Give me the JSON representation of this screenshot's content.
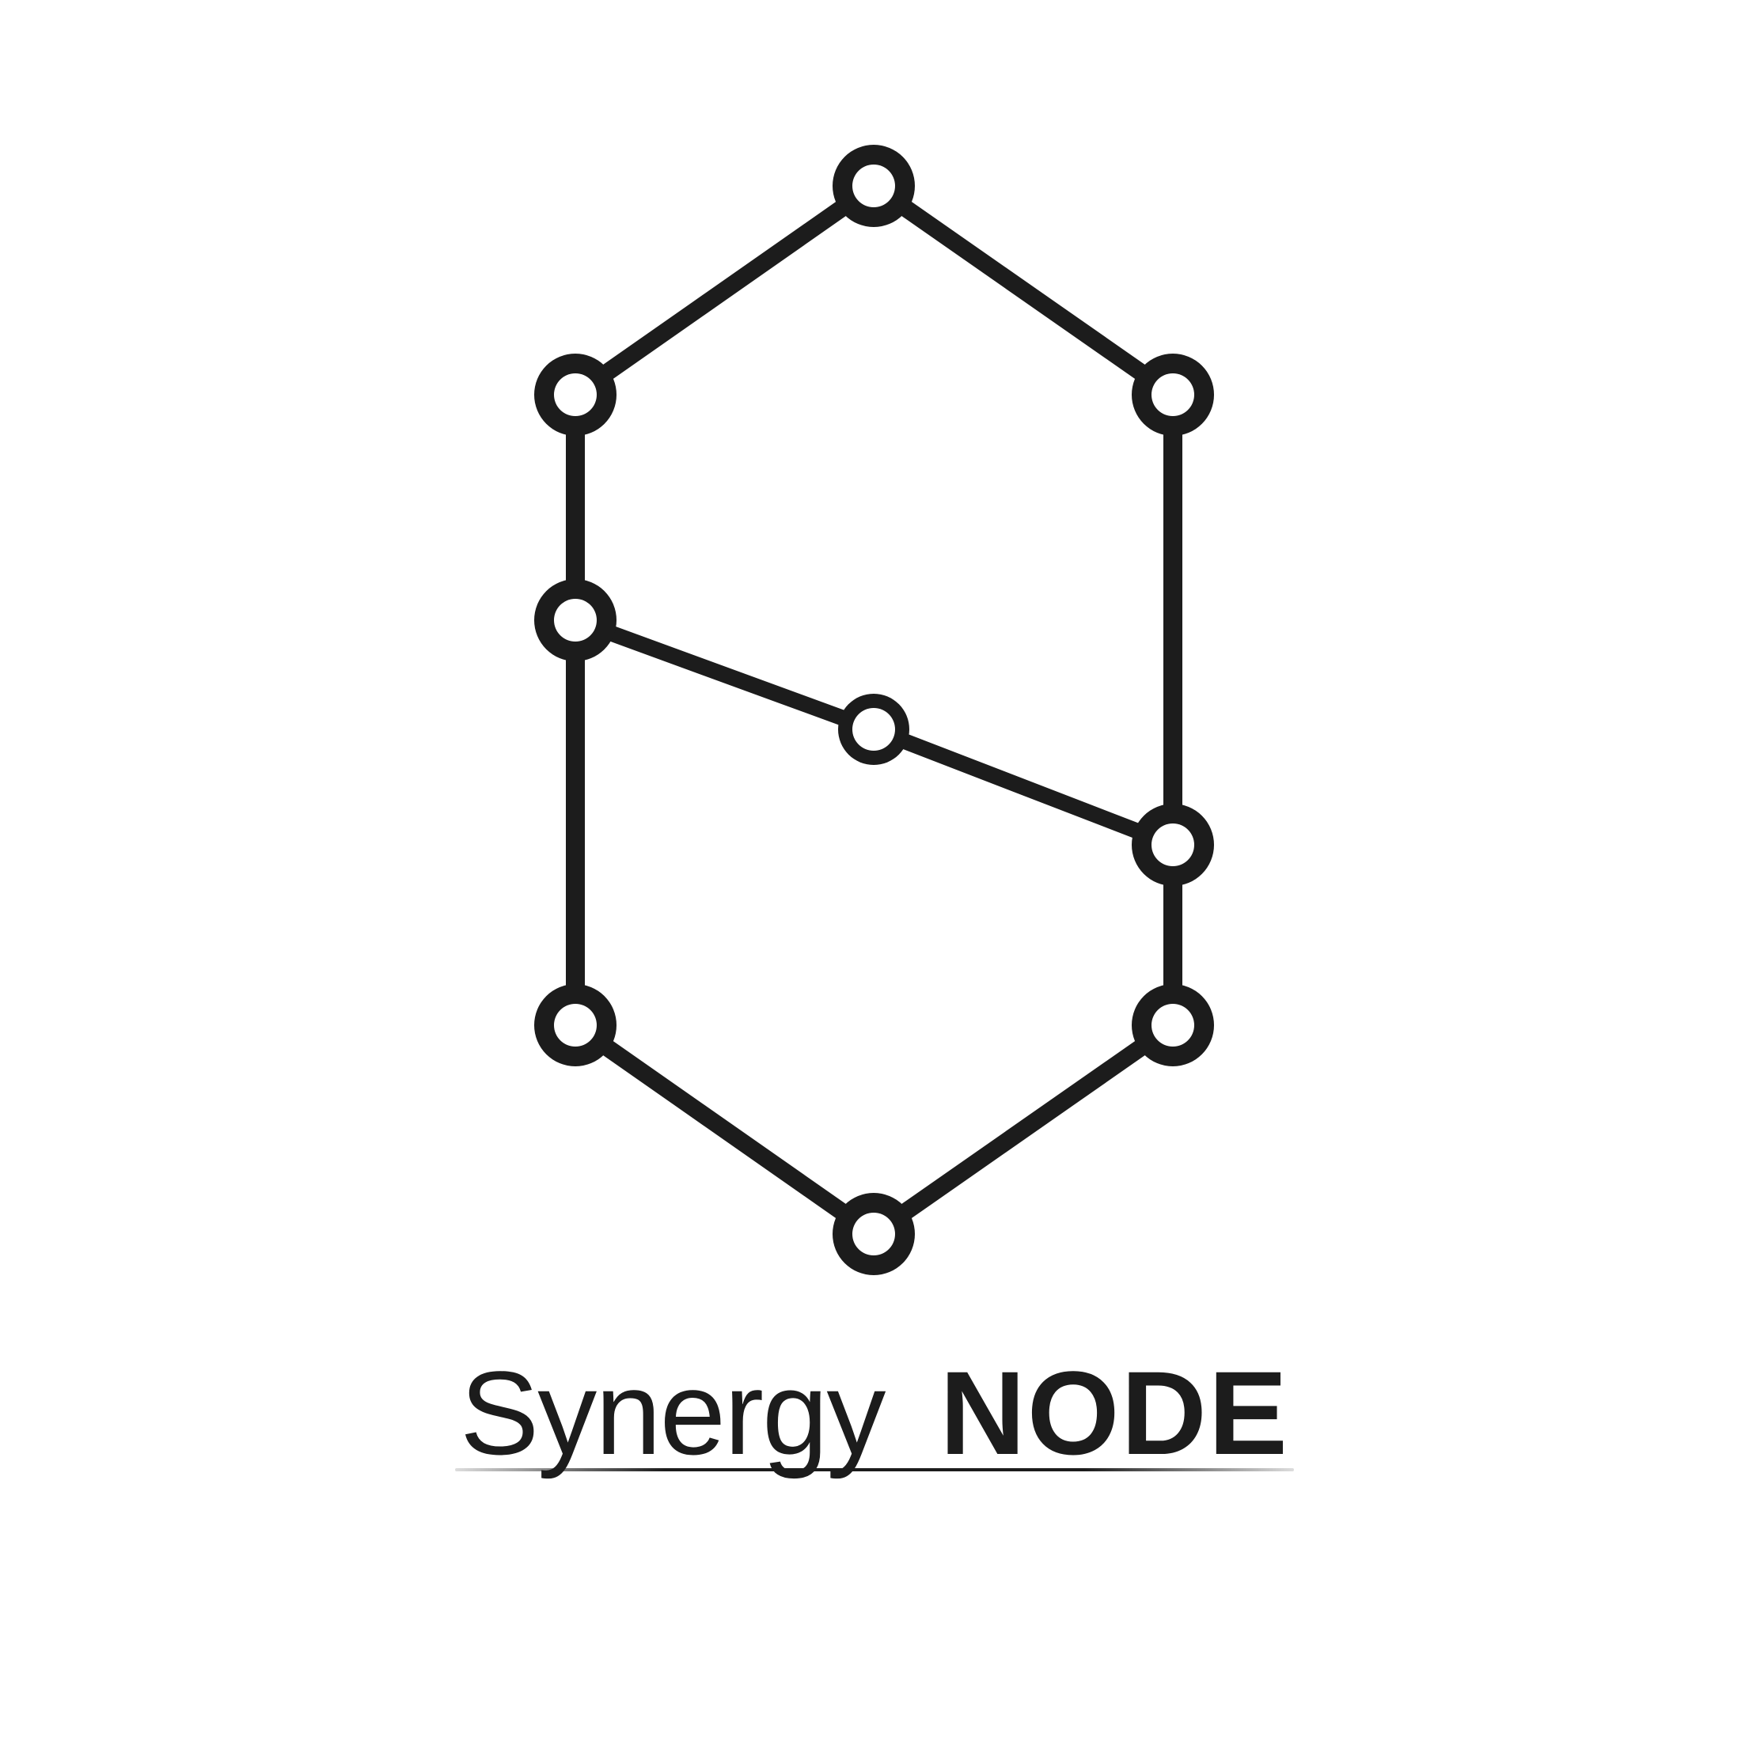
{
  "logo": {
    "word_light": "Synergy",
    "word_bold": "NODE",
    "ink_color": "#1c1c1c",
    "background_color": "#ffffff"
  }
}
